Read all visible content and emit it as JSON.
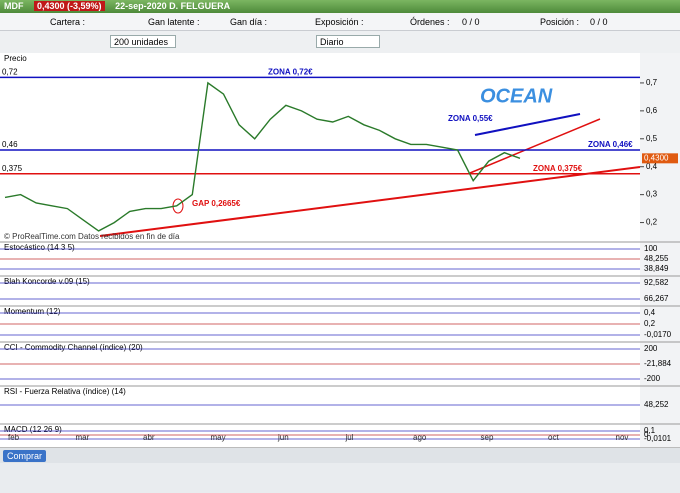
{
  "title_bar": {
    "symbol": "MDF",
    "quote": "0,4300 (-3,59%)",
    "date_name": "22-sep-2020 D. FELGUERA"
  },
  "account_bar": {
    "fields": [
      "Cartera :",
      "Gan latente :",
      "Gan día :",
      "Exposición :"
    ],
    "orders_label": "Órdenes :",
    "orders_value": "0 / 0",
    "position_label": "Posición :",
    "position_value": "0 / 0"
  },
  "toolbar": {
    "quantity": "200 unidades",
    "period": "Diario"
  },
  "price_chart": {
    "label": "Precio",
    "ylim": [
      0.134,
      0.8
    ],
    "yticks": [
      {
        "value": 0.7,
        "label": "0,7"
      },
      {
        "value": 0.6,
        "label": "0,6"
      },
      {
        "value": 0.5,
        "label": "0,5"
      },
      {
        "value": 0.4,
        "label": "0,4"
      },
      {
        "value": 0.3,
        "label": "0,3"
      },
      {
        "value": 0.2,
        "label": "0,2"
      }
    ],
    "left_levels": [
      {
        "value": 0.72,
        "label": "0,72"
      },
      {
        "value": 0.46,
        "label": "0,46"
      },
      {
        "value": 0.375,
        "label": "0,375"
      }
    ],
    "last_price": {
      "value": 0.43,
      "label": "0,4300"
    },
    "close": [
      0.29,
      0.3,
      0.27,
      0.26,
      0.25,
      0.21,
      0.17,
      0.2,
      0.24,
      0.25,
      0.25,
      0.26,
      0.3,
      0.7,
      0.66,
      0.55,
      0.5,
      0.57,
      0.62,
      0.6,
      0.57,
      0.56,
      0.58,
      0.55,
      0.53,
      0.5,
      0.48,
      0.48,
      0.47,
      0.46,
      0.35,
      0.42,
      0.45,
      0.43
    ],
    "zones": [
      {
        "label": "ZONA 0,72€",
        "value": 0.72,
        "color": "#1010c0"
      },
      {
        "label": "ZONA 0,46€",
        "value": 0.46,
        "color": "#1010c0"
      },
      {
        "label": "ZONA 0,375€",
        "value": 0.375,
        "color": "#e01010"
      }
    ],
    "zone_055": "ZONA 0,55€",
    "gap": "GAP 0,2665€",
    "brand": "OCEAN",
    "copyright": "© ProRealTime.com  Datos recibidos en fin de día",
    "months": [
      "feb",
      "mar",
      "abr",
      "may",
      "jun",
      "jul",
      "ago",
      "sep",
      "oct",
      "nov"
    ]
  },
  "indicators": [
    {
      "name": "Estocástico (14 3 5)",
      "right_labels": [
        "100",
        "48,255",
        "38,849"
      ]
    },
    {
      "name": "Blah Koncorde v.09 (15)",
      "right_labels": [
        "92,582",
        "66,267"
      ]
    },
    {
      "name": "Momentum (12)",
      "right_labels": [
        "0,4",
        "0,2",
        "-0,0170"
      ]
    },
    {
      "name": "CCI - Commodity Channel (índice) (20)",
      "right_labels": [
        "200",
        "-21,884",
        "-200"
      ]
    },
    {
      "name": "RSI - Fuerza Relativa (índice) (14)",
      "right_labels": [
        "48,252"
      ]
    },
    {
      "name": "MACD (12 26 9)",
      "right_labels": [
        "0,1",
        "0",
        "-0,0101"
      ]
    }
  ],
  "footer": {
    "buy": "Comprar"
  }
}
